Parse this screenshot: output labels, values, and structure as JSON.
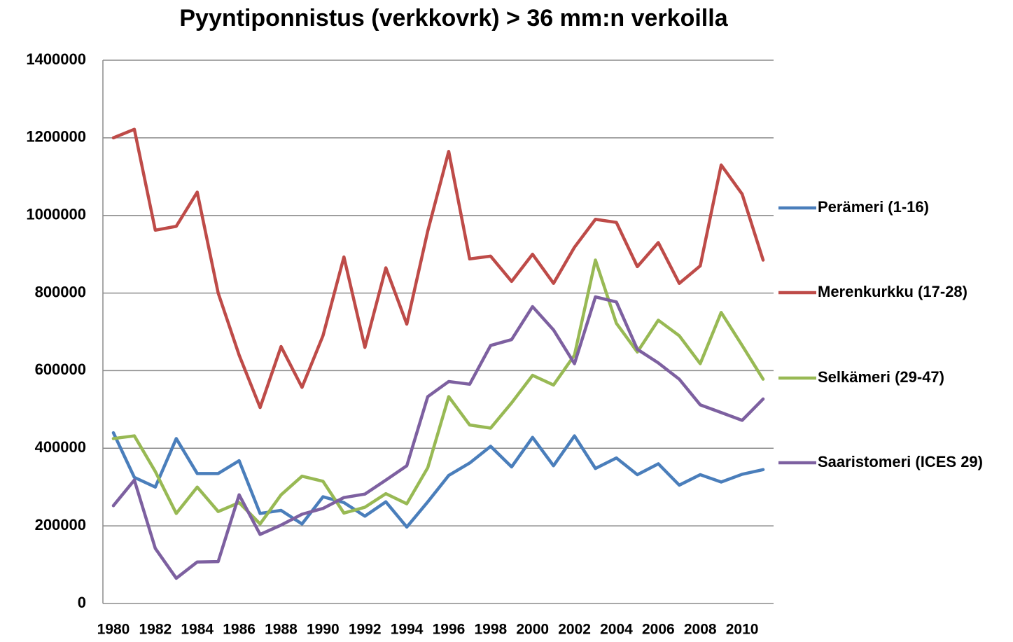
{
  "chart_data": {
    "type": "line",
    "title": "Pyyntiponnistus (verkkovrk) > 36 mm:n verkoilla",
    "categories": [
      "1980",
      null,
      "1982",
      null,
      "1984",
      null,
      "1986",
      null,
      "1988",
      null,
      "1990",
      null,
      "1992",
      null,
      "1994",
      null,
      "1996",
      null,
      "1998",
      null,
      "2000",
      null,
      "2002",
      null,
      "2004",
      null,
      "2006",
      null,
      "2008",
      null,
      "2010",
      null
    ],
    "ylim": [
      0,
      1400000
    ],
    "yticks": [
      0,
      200000,
      400000,
      600000,
      800000,
      1000000,
      1200000,
      1400000
    ],
    "grid": true,
    "legend": "right",
    "series": [
      {
        "name": "Perämeri (1-16)",
        "color": "#4a7ebb",
        "values": [
          440000,
          325000,
          300000,
          425000,
          335000,
          335000,
          368000,
          232000,
          240000,
          205000,
          275000,
          260000,
          225000,
          262000,
          197000,
          262000,
          330000,
          362000,
          405000,
          352000,
          428000,
          355000,
          432000,
          348000,
          375000,
          332000,
          360000,
          305000,
          332000,
          313000,
          333000,
          345000
        ]
      },
      {
        "name": "Merenkurkku (17-28)",
        "color": "#be4b48",
        "values": [
          1200000,
          1222000,
          962000,
          972000,
          1060000,
          800000,
          640000,
          505000,
          662000,
          557000,
          690000,
          893000,
          660000,
          865000,
          720000,
          960000,
          1165000,
          888000,
          895000,
          830000,
          900000,
          825000,
          918000,
          990000,
          982000,
          868000,
          930000,
          825000,
          870000,
          1130000,
          1055000,
          885000
        ]
      },
      {
        "name": "Selkämeri (29-47)",
        "color": "#98b954",
        "values": [
          425000,
          432000,
          340000,
          232000,
          300000,
          237000,
          260000,
          205000,
          280000,
          328000,
          315000,
          233000,
          248000,
          283000,
          257000,
          350000,
          533000,
          460000,
          452000,
          517000,
          588000,
          563000,
          640000,
          885000,
          722000,
          648000,
          730000,
          690000,
          618000,
          750000,
          665000,
          578000
        ]
      },
      {
        "name": "Saaristomeri (ICES  29)",
        "color": "#7d60a0",
        "values": [
          252000,
          318000,
          142000,
          65000,
          107000,
          108000,
          280000,
          178000,
          202000,
          230000,
          245000,
          273000,
          282000,
          318000,
          355000,
          533000,
          572000,
          565000,
          665000,
          680000,
          765000,
          705000,
          618000,
          790000,
          777000,
          655000,
          620000,
          578000,
          512000,
          492000,
          472000,
          527000
        ]
      }
    ]
  }
}
